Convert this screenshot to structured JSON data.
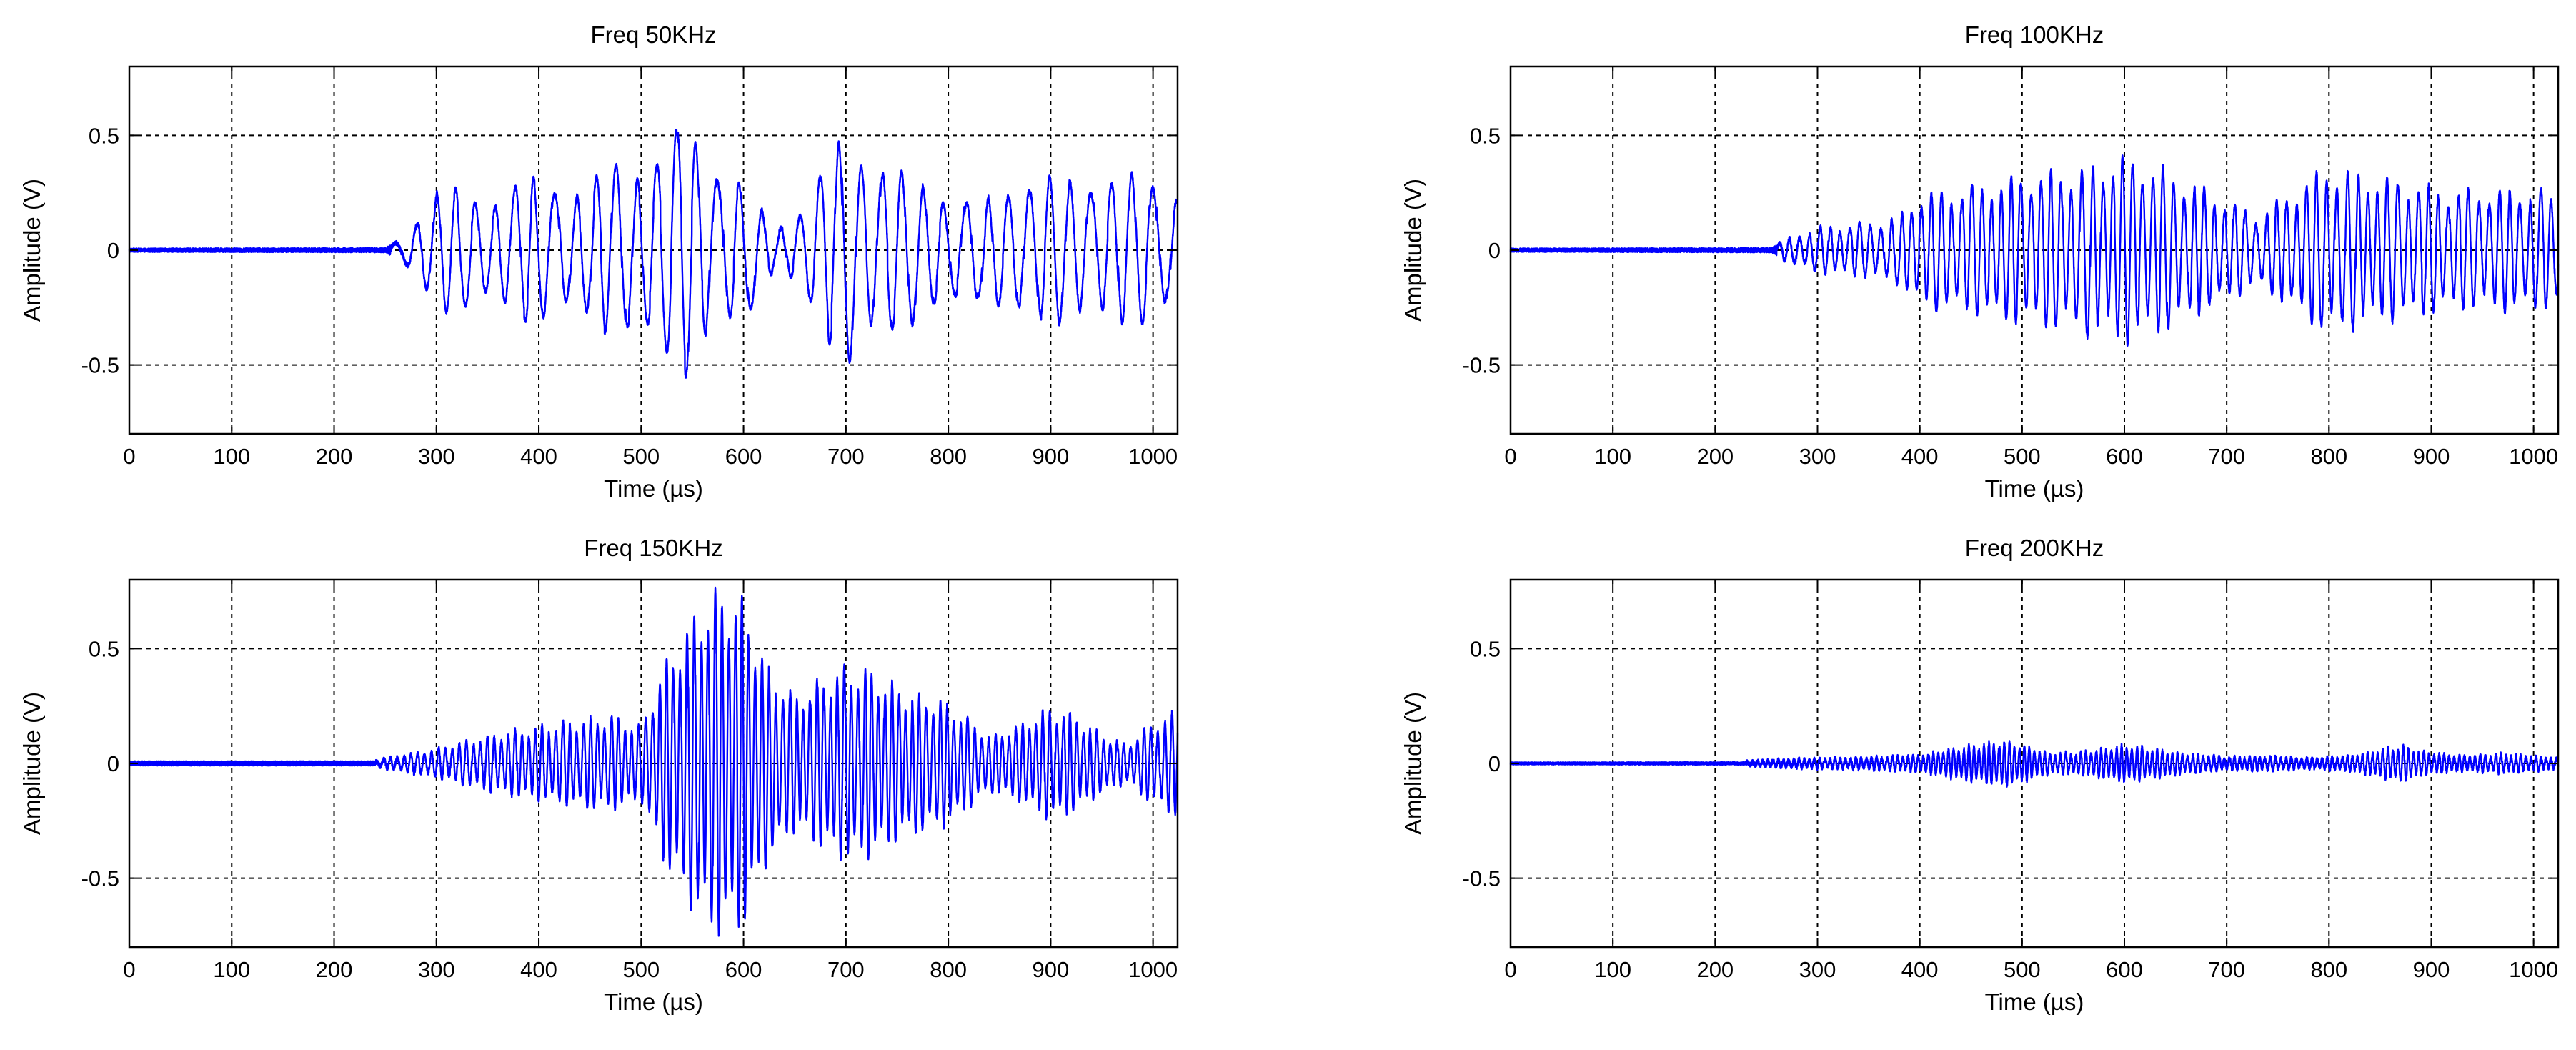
{
  "chart_data": [
    {
      "type": "line",
      "title": "Freq 50KHz",
      "xlabel": "Time (µs)",
      "ylabel": "Amplitude (V)",
      "xlim": [
        0,
        1024
      ],
      "ylim": [
        -0.8,
        0.8
      ],
      "xticks": [
        0,
        100,
        200,
        300,
        400,
        500,
        600,
        700,
        800,
        900,
        1000
      ],
      "xtick_labels": [
        "0",
        "100",
        "200",
        "300",
        "400",
        "500",
        "600",
        "700",
        "800",
        "900",
        "1000"
      ],
      "yticks": [
        -0.5,
        0,
        0.5
      ],
      "ytick_labels": [
        "-0.5",
        "0",
        "0.5"
      ],
      "grid": true,
      "line_color": "#0000ff",
      "signal": {
        "onset_us": 255,
        "carrier_khz": 50,
        "envelope": [
          [
            0,
            0.008
          ],
          [
            250,
            0.01
          ],
          [
            265,
            0.05
          ],
          [
            300,
            0.28
          ],
          [
            350,
            0.25
          ],
          [
            400,
            0.33
          ],
          [
            450,
            0.3
          ],
          [
            480,
            0.42
          ],
          [
            520,
            0.45
          ],
          [
            545,
            0.57
          ],
          [
            560,
            0.5
          ],
          [
            600,
            0.3
          ],
          [
            630,
            0.1
          ],
          [
            660,
            0.22
          ],
          [
            690,
            0.45
          ],
          [
            700,
            0.6
          ],
          [
            715,
            0.5
          ],
          [
            750,
            0.35
          ],
          [
            790,
            0.3
          ],
          [
            830,
            0.2
          ],
          [
            870,
            0.35
          ],
          [
            910,
            0.32
          ],
          [
            950,
            0.35
          ],
          [
            990,
            0.33
          ],
          [
            1024,
            0.3
          ]
        ]
      }
    },
    {
      "type": "line",
      "title": "Freq 100KHz",
      "xlabel": "Time (µs)",
      "ylabel": "Amplitude (V)",
      "xlim": [
        0,
        1024
      ],
      "ylim": [
        -0.8,
        0.8
      ],
      "xticks": [
        0,
        100,
        200,
        300,
        400,
        500,
        600,
        700,
        800,
        900,
        1000
      ],
      "xtick_labels": [
        "0",
        "100",
        "200",
        "300",
        "400",
        "500",
        "600",
        "700",
        "800",
        "900",
        "1000"
      ],
      "yticks": [
        -0.5,
        0,
        0.5
      ],
      "ytick_labels": [
        "-0.5",
        "0",
        "0.5"
      ],
      "grid": true,
      "line_color": "#0000ff",
      "signal": {
        "onset_us": 260,
        "carrier_khz": 100,
        "envelope": [
          [
            0,
            0.008
          ],
          [
            255,
            0.01
          ],
          [
            270,
            0.05
          ],
          [
            300,
            0.1
          ],
          [
            350,
            0.12
          ],
          [
            380,
            0.15
          ],
          [
            400,
            0.25
          ],
          [
            450,
            0.28
          ],
          [
            500,
            0.33
          ],
          [
            550,
            0.36
          ],
          [
            600,
            0.42
          ],
          [
            640,
            0.36
          ],
          [
            680,
            0.27
          ],
          [
            710,
            0.2
          ],
          [
            730,
            0.15
          ],
          [
            760,
            0.25
          ],
          [
            800,
            0.38
          ],
          [
            840,
            0.33
          ],
          [
            880,
            0.3
          ],
          [
            920,
            0.26
          ],
          [
            960,
            0.27
          ],
          [
            1000,
            0.27
          ],
          [
            1024,
            0.25
          ]
        ]
      }
    },
    {
      "type": "line",
      "title": "Freq 150KHz",
      "xlabel": "Time (µs)",
      "ylabel": "Amplitude (V)",
      "xlim": [
        0,
        1024
      ],
      "ylim": [
        -0.8,
        0.8
      ],
      "xticks": [
        0,
        100,
        200,
        300,
        400,
        500,
        600,
        700,
        800,
        900,
        1000
      ],
      "xtick_labels": [
        "0",
        "100",
        "200",
        "300",
        "400",
        "500",
        "600",
        "700",
        "800",
        "900",
        "1000"
      ],
      "yticks": [
        -0.5,
        0,
        0.5
      ],
      "ytick_labels": [
        "-0.5",
        "0",
        "0.5"
      ],
      "grid": true,
      "line_color": "#0000ff",
      "signal": {
        "onset_us": 240,
        "carrier_khz": 150,
        "envelope": [
          [
            0,
            0.01
          ],
          [
            240,
            0.01
          ],
          [
            260,
            0.03
          ],
          [
            300,
            0.06
          ],
          [
            330,
            0.1
          ],
          [
            370,
            0.14
          ],
          [
            420,
            0.18
          ],
          [
            470,
            0.21
          ],
          [
            500,
            0.16
          ],
          [
            520,
            0.42
          ],
          [
            560,
            0.73
          ],
          [
            580,
            0.78
          ],
          [
            600,
            0.72
          ],
          [
            625,
            0.42
          ],
          [
            650,
            0.3
          ],
          [
            700,
            0.44
          ],
          [
            720,
            0.42
          ],
          [
            760,
            0.32
          ],
          [
            800,
            0.27
          ],
          [
            840,
            0.12
          ],
          [
            870,
            0.17
          ],
          [
            900,
            0.25
          ],
          [
            920,
            0.22
          ],
          [
            950,
            0.13
          ],
          [
            975,
            0.08
          ],
          [
            990,
            0.15
          ],
          [
            1024,
            0.24
          ]
        ]
      }
    },
    {
      "type": "line",
      "title": "Freq 200KHz",
      "xlabel": "Time (µs)",
      "ylabel": "Amplitude (V)",
      "xlim": [
        0,
        1024
      ],
      "ylim": [
        -0.8,
        0.8
      ],
      "xticks": [
        0,
        100,
        200,
        300,
        400,
        500,
        600,
        700,
        800,
        900,
        1000
      ],
      "xtick_labels": [
        "0",
        "100",
        "200",
        "300",
        "400",
        "500",
        "600",
        "700",
        "800",
        "900",
        "1000"
      ],
      "yticks": [
        -0.5,
        0,
        0.5
      ],
      "ytick_labels": [
        "-0.5",
        "0",
        "0.5"
      ],
      "grid": true,
      "line_color": "#0000ff",
      "signal": {
        "onset_us": 230,
        "carrier_khz": 200,
        "envelope": [
          [
            0,
            0.005
          ],
          [
            230,
            0.006
          ],
          [
            260,
            0.015
          ],
          [
            300,
            0.02
          ],
          [
            350,
            0.025
          ],
          [
            400,
            0.035
          ],
          [
            440,
            0.07
          ],
          [
            480,
            0.1
          ],
          [
            500,
            0.08
          ],
          [
            530,
            0.04
          ],
          [
            560,
            0.05
          ],
          [
            600,
            0.08
          ],
          [
            620,
            0.07
          ],
          [
            660,
            0.04
          ],
          [
            700,
            0.025
          ],
          [
            740,
            0.03
          ],
          [
            780,
            0.02
          ],
          [
            820,
            0.03
          ],
          [
            870,
            0.08
          ],
          [
            890,
            0.05
          ],
          [
            930,
            0.03
          ],
          [
            970,
            0.04
          ],
          [
            1000,
            0.03
          ],
          [
            1024,
            0.02
          ]
        ]
      }
    }
  ]
}
